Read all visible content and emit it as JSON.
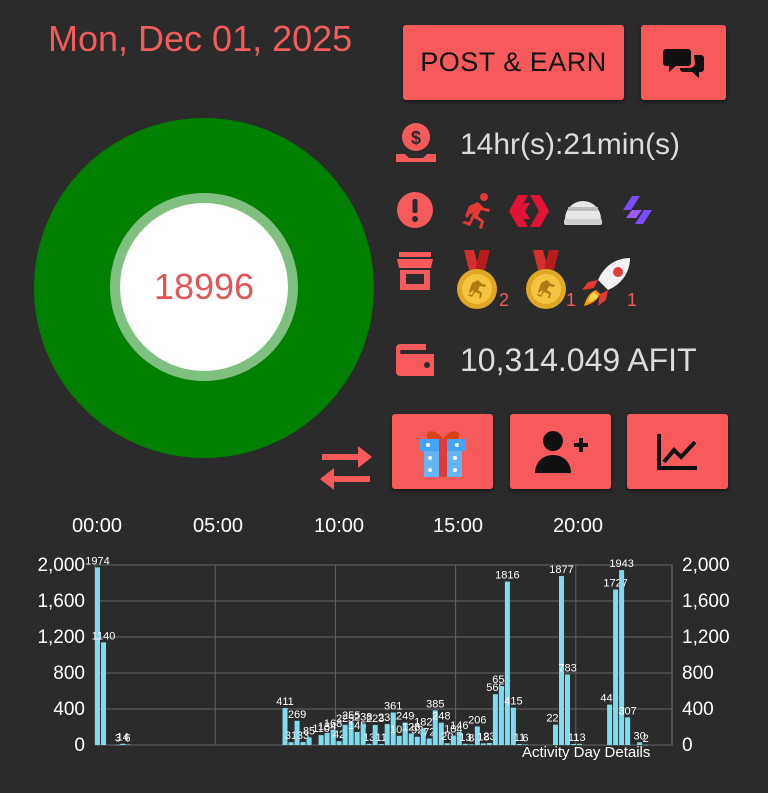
{
  "header": {
    "date": "Mon, Dec 01, 2025",
    "post_button": "POST & EARN"
  },
  "ring": {
    "value": "18996"
  },
  "info": {
    "time_left": "14hr(s):21min(s)",
    "badge_counts": [
      "2",
      "1",
      "1"
    ],
    "wallet": "10,314.049 AFIT"
  },
  "icons": {
    "coin": "coin-hand-icon",
    "alert": "alert-circle-icon",
    "shop": "storefront-icon",
    "wallet": "wallet-icon",
    "chat": "chat-bubbles-icon",
    "gift": "gift-icon",
    "add_user": "add-user-icon",
    "chart": "line-chart-icon",
    "swap": "swap-arrows-icon"
  },
  "colors": {
    "accent": "#f75a5a",
    "ring": "#008000",
    "bar": "#7fdcf0"
  },
  "timebar": [
    "00:00",
    "05:00",
    "10:00",
    "15:00",
    "20:00"
  ],
  "chart_data": {
    "type": "bar",
    "title": "",
    "caption": "Activity Day Details",
    "yticks": [
      "2,000",
      "1,600",
      "1,200",
      "800",
      "400",
      "0"
    ],
    "ylim": [
      0,
      2000
    ],
    "x_range": [
      0,
      24
    ],
    "points": [
      {
        "x": 0.0,
        "y": 1974,
        "label": "1974"
      },
      {
        "x": 0.25,
        "y": 1140,
        "label": "1140"
      },
      {
        "x": 0.85,
        "y": 3,
        "label": "3"
      },
      {
        "x": 1.05,
        "y": 14,
        "label": "14"
      },
      {
        "x": 1.25,
        "y": 6,
        "label": "6"
      },
      {
        "x": 7.8,
        "y": 411,
        "label": "411"
      },
      {
        "x": 8.05,
        "y": 31,
        "label": "31"
      },
      {
        "x": 8.3,
        "y": 269,
        "label": "269"
      },
      {
        "x": 8.55,
        "y": 33,
        "label": "33"
      },
      {
        "x": 8.8,
        "y": 85,
        "label": "85"
      },
      {
        "x": 9.3,
        "y": 110,
        "label": "110"
      },
      {
        "x": 9.55,
        "y": 134,
        "label": "134"
      },
      {
        "x": 9.8,
        "y": 168,
        "label": "168"
      },
      {
        "x": 10.05,
        "y": 42,
        "label": "42"
      },
      {
        "x": 10.3,
        "y": 225,
        "label": "225"
      },
      {
        "x": 10.55,
        "y": 255,
        "label": "255"
      },
      {
        "x": 10.8,
        "y": 145,
        "label": "145"
      },
      {
        "x": 11.05,
        "y": 238,
        "label": "238"
      },
      {
        "x": 11.3,
        "y": 13,
        "label": "13"
      },
      {
        "x": 11.55,
        "y": 223,
        "label": "223"
      },
      {
        "x": 11.8,
        "y": 11,
        "label": "11"
      },
      {
        "x": 12.05,
        "y": 233,
        "label": "233"
      },
      {
        "x": 12.3,
        "y": 361,
        "label": "361"
      },
      {
        "x": 12.55,
        "y": 102,
        "label": "102"
      },
      {
        "x": 12.8,
        "y": 249,
        "label": "249"
      },
      {
        "x": 13.05,
        "y": 128,
        "label": "128"
      },
      {
        "x": 13.3,
        "y": 92,
        "label": "92"
      },
      {
        "x": 13.55,
        "y": 182,
        "label": "182"
      },
      {
        "x": 13.8,
        "y": 72,
        "label": "72"
      },
      {
        "x": 14.05,
        "y": 385,
        "label": "385"
      },
      {
        "x": 14.3,
        "y": 248,
        "label": "248"
      },
      {
        "x": 14.55,
        "y": 20,
        "label": "20"
      },
      {
        "x": 14.8,
        "y": 104,
        "label": "104"
      },
      {
        "x": 15.05,
        "y": 146,
        "label": "146"
      },
      {
        "x": 15.3,
        "y": 13,
        "label": "13"
      },
      {
        "x": 15.55,
        "y": 8,
        "label": "8"
      },
      {
        "x": 15.8,
        "y": 206,
        "label": "206"
      },
      {
        "x": 16.05,
        "y": 18,
        "label": "18"
      },
      {
        "x": 16.3,
        "y": 23,
        "label": "23"
      },
      {
        "x": 16.55,
        "y": 565,
        "label": "565"
      },
      {
        "x": 16.8,
        "y": 654,
        "label": "654"
      },
      {
        "x": 17.05,
        "y": 1816,
        "label": "1816"
      },
      {
        "x": 17.3,
        "y": 415,
        "label": "415"
      },
      {
        "x": 17.55,
        "y": 11,
        "label": "11"
      },
      {
        "x": 17.8,
        "y": 6,
        "label": "6"
      },
      {
        "x": 19.05,
        "y": 226,
        "label": "226"
      },
      {
        "x": 19.3,
        "y": 1877,
        "label": "1877"
      },
      {
        "x": 19.55,
        "y": 783,
        "label": "783"
      },
      {
        "x": 19.8,
        "y": 11,
        "label": "11"
      },
      {
        "x": 20.05,
        "y": 13,
        "label": "13"
      },
      {
        "x": 21.3,
        "y": 449,
        "label": "449"
      },
      {
        "x": 21.55,
        "y": 1727,
        "label": "1727"
      },
      {
        "x": 21.8,
        "y": 1943,
        "label": "1943"
      },
      {
        "x": 22.05,
        "y": 307,
        "label": "307"
      },
      {
        "x": 22.55,
        "y": 30,
        "label": "30"
      },
      {
        "x": 22.8,
        "y": 2,
        "label": "2"
      }
    ]
  }
}
